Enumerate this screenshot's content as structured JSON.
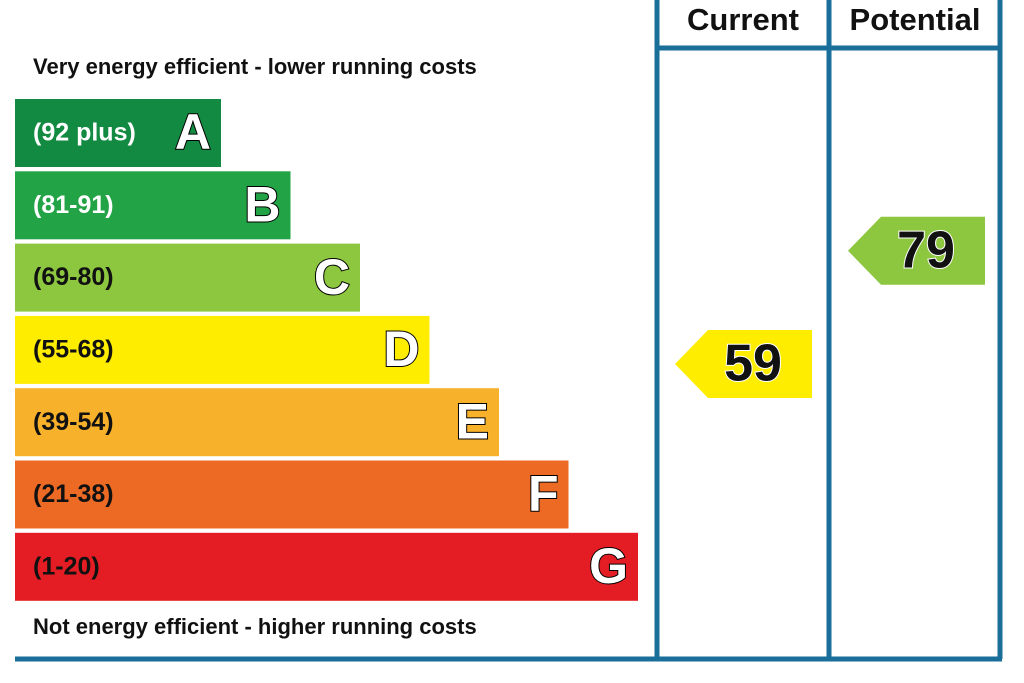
{
  "header": {
    "current": "Current",
    "potential": "Potential"
  },
  "top_note": "Very energy efficient - lower running costs",
  "bottom_note": "Not energy efficient - higher running costs",
  "bands": [
    {
      "range": "(92 plus)",
      "letter": "A",
      "color": "#138a41"
    },
    {
      "range": "(81-91)",
      "letter": "B",
      "color": "#22a346"
    },
    {
      "range": "(69-80)",
      "letter": "C",
      "color": "#8dc63f"
    },
    {
      "range": "(55-68)",
      "letter": "D",
      "color": "#ffed00"
    },
    {
      "range": "(39-54)",
      "letter": "E",
      "color": "#f7b12a"
    },
    {
      "range": "(21-38)",
      "letter": "F",
      "color": "#ec6a24"
    },
    {
      "range": "(1-20)",
      "letter": "G",
      "color": "#e31d23"
    }
  ],
  "current": 59,
  "potential": 79
}
